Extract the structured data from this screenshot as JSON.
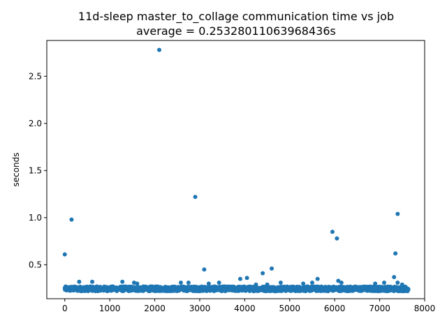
{
  "chart_data": {
    "type": "scatter",
    "title_line1": "11d-sleep master_to_collage communication time vs job",
    "title_line2": "average = 0.25328011063968436s",
    "xlabel": "",
    "ylabel": "seconds",
    "xlim": [
      -400,
      8000
    ],
    "ylim": [
      0.14,
      2.88
    ],
    "xticks": [
      0,
      1000,
      2000,
      3000,
      4000,
      5000,
      6000,
      7000,
      8000
    ],
    "xtick_labels": [
      "0",
      "1000",
      "2000",
      "3000",
      "4000",
      "5000",
      "6000",
      "7000",
      "8000"
    ],
    "yticks": [
      0.5,
      1.0,
      1.5,
      2.0,
      2.5
    ],
    "ytick_labels": [
      "0.5",
      "1.0",
      "1.5",
      "2.0",
      "2.5"
    ],
    "grid": false,
    "marker_color": "#1f77b4",
    "baseline": {
      "x_start": 0,
      "x_end": 7640,
      "y_center": 0.245,
      "y_spread": 0.025
    },
    "outliers": [
      [
        0,
        0.61
      ],
      [
        150,
        0.98
      ],
      [
        320,
        0.32
      ],
      [
        610,
        0.32
      ],
      [
        1280,
        0.32
      ],
      [
        1540,
        0.31
      ],
      [
        1610,
        0.3
      ],
      [
        2100,
        2.78
      ],
      [
        2580,
        0.31
      ],
      [
        2750,
        0.31
      ],
      [
        2900,
        1.22
      ],
      [
        3100,
        0.45
      ],
      [
        3200,
        0.3
      ],
      [
        3430,
        0.31
      ],
      [
        3900,
        0.35
      ],
      [
        4050,
        0.36
      ],
      [
        4250,
        0.29
      ],
      [
        4400,
        0.41
      ],
      [
        4500,
        0.29
      ],
      [
        4600,
        0.46
      ],
      [
        4800,
        0.31
      ],
      [
        5300,
        0.3
      ],
      [
        5500,
        0.31
      ],
      [
        5620,
        0.35
      ],
      [
        5950,
        0.85
      ],
      [
        6050,
        0.78
      ],
      [
        6080,
        0.33
      ],
      [
        6150,
        0.31
      ],
      [
        6900,
        0.3
      ],
      [
        7100,
        0.31
      ],
      [
        7320,
        0.37
      ],
      [
        7350,
        0.62
      ],
      [
        7400,
        1.04
      ],
      [
        7400,
        0.31
      ],
      [
        7500,
        0.29
      ]
    ]
  }
}
